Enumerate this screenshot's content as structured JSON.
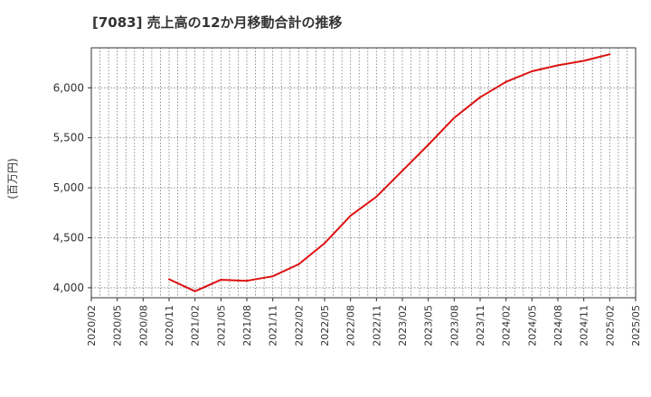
{
  "chart_data": {
    "type": "line",
    "title": "[7083]  売上高の12か月移動合計の推移",
    "ylabel": "(百万円)",
    "xlabel": "",
    "ylim": [
      3900,
      6400
    ],
    "yticks": [
      4000,
      4500,
      5000,
      5500,
      6000
    ],
    "ytick_labels": [
      "4,000",
      "4,500",
      "5,000",
      "5,500",
      "6,000"
    ],
    "x_ticks": [
      "2020/02",
      "2020/05",
      "2020/08",
      "2020/11",
      "2021/02",
      "2021/05",
      "2021/08",
      "2021/11",
      "2022/02",
      "2022/05",
      "2022/08",
      "2022/11",
      "2023/02",
      "2023/05",
      "2023/08",
      "2023/11",
      "2024/02",
      "2024/05",
      "2024/08",
      "2024/11",
      "2025/02",
      "2025/05"
    ],
    "grid": true,
    "series": [
      {
        "name": "売上高の12か月移動合計",
        "color": "#dd1111",
        "x": [
          "2020/11",
          "2021/02",
          "2021/05",
          "2021/08",
          "2021/11",
          "2022/02",
          "2022/05",
          "2022/08",
          "2022/11",
          "2023/02",
          "2023/05",
          "2023/08",
          "2023/11",
          "2024/02",
          "2024/05",
          "2024/08",
          "2024/11",
          "2025/02"
        ],
        "values": [
          4085,
          3965,
          4080,
          4070,
          4115,
          4235,
          4445,
          4720,
          4910,
          5170,
          5430,
          5700,
          5905,
          6060,
          6165,
          6225,
          6270,
          6335
        ]
      }
    ]
  }
}
